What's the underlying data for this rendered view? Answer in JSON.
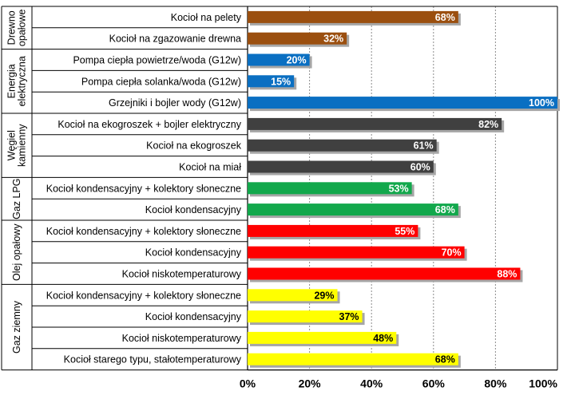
{
  "chart_data": {
    "type": "bar",
    "orientation": "horizontal",
    "xlim": [
      0,
      100
    ],
    "x_ticks": [
      "0%",
      "20%",
      "40%",
      "60%",
      "80%",
      "100%"
    ],
    "grid": "vertical dashed",
    "groups": [
      {
        "name": "Drewno opałowe",
        "name_lines": [
          "Drewno",
          "opałowe"
        ],
        "color": "#9B4F0F",
        "label_color": "#ffffff",
        "items": [
          {
            "category": "Kocioł na pelety",
            "value": 68,
            "label": "68%"
          },
          {
            "category": "Kocioł na zgazowanie drewna",
            "value": 32,
            "label": "32%"
          }
        ]
      },
      {
        "name": "Energia elektryczna",
        "name_lines": [
          "Energia",
          "elektryczna"
        ],
        "color": "#0A6FC2",
        "label_color": "#ffffff",
        "items": [
          {
            "category": "Pompa ciepła powietrze/woda (G12w)",
            "value": 20,
            "label": "20%"
          },
          {
            "category": "Pompa ciepła solanka/woda (G12w)",
            "value": 15,
            "label": "15%"
          },
          {
            "category": "Grzejniki i bojler wody (G12w)",
            "value": 100,
            "label": "100%"
          }
        ]
      },
      {
        "name": "Węgiel kamienny",
        "name_lines": [
          "Węgiel",
          "kamienny"
        ],
        "color": "#404040",
        "label_color": "#ffffff",
        "items": [
          {
            "category": "Kocioł na ekogroszek + bojler elektryczny",
            "value": 82,
            "label": "82%"
          },
          {
            "category": "Kocioł na ekogroszek",
            "value": 61,
            "label": "61%"
          },
          {
            "category": "Kocioł na miał",
            "value": 60,
            "label": "60%"
          }
        ]
      },
      {
        "name": "Gaz LPG",
        "name_lines": [
          "Gaz LPG"
        ],
        "color": "#12A84C",
        "label_color": "#ffffff",
        "items": [
          {
            "category": "Kocioł kondensacyjny + kolektory słoneczne",
            "value": 53,
            "label": "53%"
          },
          {
            "category": "Kocioł kondensacyjny",
            "value": 68,
            "label": "68%"
          }
        ]
      },
      {
        "name": "Olej opałowy",
        "name_lines": [
          "Olej opałowy"
        ],
        "color": "#FF0000",
        "label_color": "#ffffff",
        "items": [
          {
            "category": "Kocioł kondensacyjny + kolektory słoneczne",
            "value": 55,
            "label": "55%"
          },
          {
            "category": "Kocioł kondensacyjny",
            "value": 70,
            "label": "70%"
          },
          {
            "category": "Kocioł niskotemperaturowy",
            "value": 88,
            "label": "88%"
          }
        ]
      },
      {
        "name": "Gaz ziemny",
        "name_lines": [
          "Gaz ziemny"
        ],
        "color": "#FFFF00",
        "label_color": "#000000",
        "items": [
          {
            "category": "Kocioł kondensacyjny + kolektory słoneczne",
            "value": 29,
            "label": "29%"
          },
          {
            "category": "Kocioł kondensacyjny",
            "value": 37,
            "label": "37%"
          },
          {
            "category": "Kocioł niskotemperaturowy",
            "value": 48,
            "label": "48%"
          },
          {
            "category": "Kocioł starego typu, stałotemperaturowy",
            "value": 68,
            "label": "68%"
          }
        ]
      }
    ]
  }
}
